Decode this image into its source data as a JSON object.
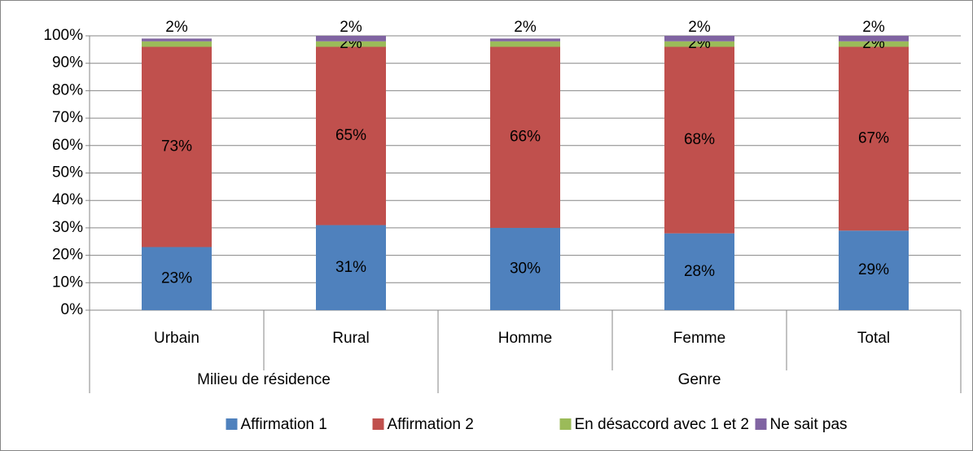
{
  "chart_data": {
    "type": "stacked_bar",
    "categories": [
      "Urbain",
      "Rural",
      "Homme",
      "Femme",
      "Total"
    ],
    "groups": [
      {
        "label": "Milieu de résidence",
        "span": 2
      },
      {
        "label": "Genre",
        "span": 3
      }
    ],
    "series": [
      {
        "name": "Affirmation 1",
        "color": "#4f81bd",
        "values": [
          23,
          31,
          30,
          28,
          29
        ],
        "value_labels": [
          "23%",
          "31%",
          "30%",
          "28%",
          "29%"
        ]
      },
      {
        "name": "Affirmation 2",
        "color": "#c0504d",
        "values": [
          73,
          65,
          66,
          68,
          67
        ],
        "value_labels": [
          "73%",
          "65%",
          "66%",
          "68%",
          "67%"
        ]
      },
      {
        "name": "En désaccord avec 1 et 2",
        "color": "#9bbb59",
        "values": [
          2,
          2,
          2,
          2,
          2
        ],
        "value_labels": [
          "2%",
          "2%",
          "2%",
          "2%",
          "2%"
        ]
      },
      {
        "name": "Ne sait pas",
        "color": "#8064a2",
        "values": [
          1,
          2,
          1,
          2,
          2
        ],
        "value_labels": [
          null,
          "2%",
          null,
          "2%",
          "2%"
        ]
      }
    ],
    "ylim": [
      0,
      100
    ],
    "yticks": [
      {
        "value": 0,
        "label": "0%"
      },
      {
        "value": 10,
        "label": "10%"
      },
      {
        "value": 20,
        "label": "20%"
      },
      {
        "value": 30,
        "label": "30%"
      },
      {
        "value": 40,
        "label": "40%"
      },
      {
        "value": 50,
        "label": "50%"
      },
      {
        "value": 60,
        "label": "60%"
      },
      {
        "value": 70,
        "label": "70%"
      },
      {
        "value": 80,
        "label": "80%"
      },
      {
        "value": 90,
        "label": "90%"
      },
      {
        "value": 100,
        "label": "100%"
      }
    ],
    "grid": true,
    "legend": "bottom"
  }
}
